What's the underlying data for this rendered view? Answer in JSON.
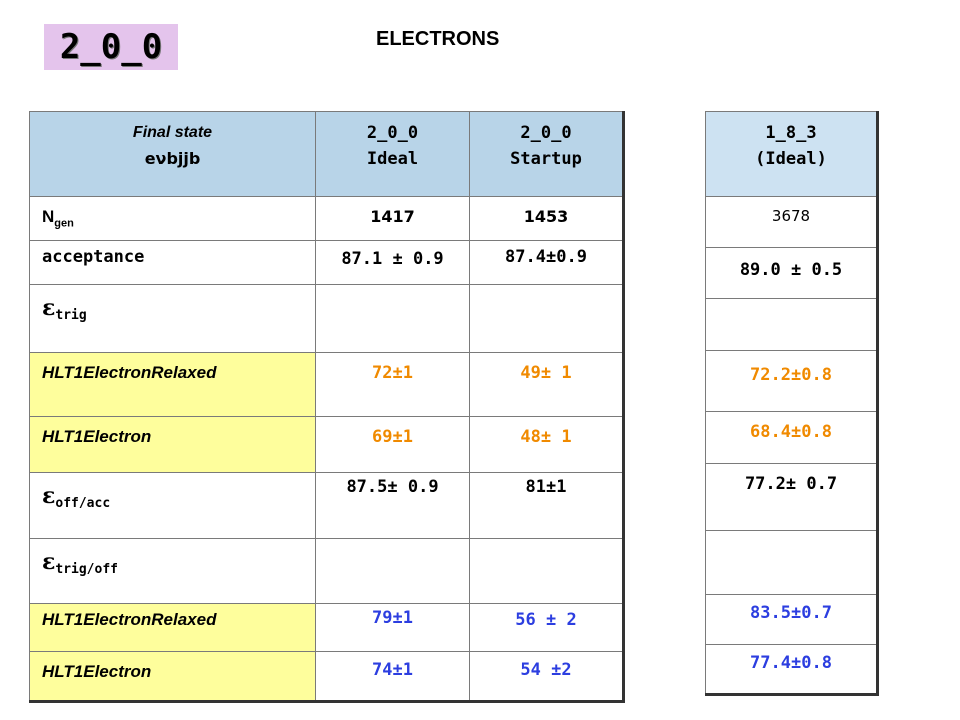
{
  "badge": "2_0_0",
  "heading": "ELECTRONS",
  "main_table": {
    "header": {
      "col0_line1": "Final state",
      "col0_line2": "eνbjjb",
      "col1_line1": "2_0_0",
      "col1_line2": "Ideal",
      "col2_line1": "2_0_0",
      "col2_line2": "Startup"
    },
    "rows": [
      {
        "label_main": "N",
        "label_sub": "gen",
        "ideal": "1417",
        "startup": "1453"
      },
      {
        "label": "acceptance",
        "ideal": "87.1 ± 0.9",
        "startup": "87.4±0.9"
      },
      {
        "label_main": "ε",
        "label_sub": "trig",
        "ideal": "",
        "startup": ""
      },
      {
        "label": "HLT1ElectronRelaxed",
        "ideal": "72±1",
        "startup": "49±  1"
      },
      {
        "label": "HLT1Electron",
        "ideal": "69±1",
        "startup": "48± 1"
      },
      {
        "label_main": "ε",
        "label_sub": "off/acc",
        "ideal": "87.5± 0.9",
        "startup": "81±1"
      },
      {
        "label_main": "ε",
        "label_sub": "trig/off",
        "ideal": "",
        "startup": ""
      },
      {
        "label": "HLT1ElectronRelaxed",
        "ideal": "79±1",
        "startup": "56 ± 2"
      },
      {
        "label": "HLT1Electron",
        "ideal": "74±1",
        "startup": "54 ±2"
      }
    ]
  },
  "side_table": {
    "header_line1": "1_8_3",
    "header_line2": "(Ideal)",
    "values": [
      "3678",
      "89.0 ± 0.5",
      "",
      "72.2±0.8",
      "68.4±0.8",
      "77.2± 0.7",
      "",
      "83.5±0.7",
      "77.4±0.8"
    ]
  },
  "colors": {
    "header_bg": "#b8d4e8",
    "highlight_bg": "#fefe9c",
    "orange_text": "#f08a00",
    "blue_text": "#2c3ee0",
    "badge_bg": "#e4c4ec"
  }
}
